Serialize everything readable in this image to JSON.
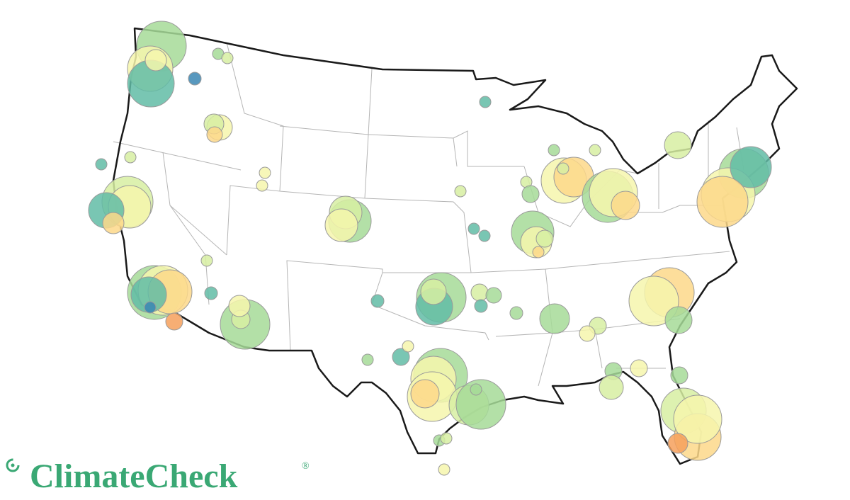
{
  "logo": {
    "name": "ClimateCheck",
    "mark": "®"
  }
}
